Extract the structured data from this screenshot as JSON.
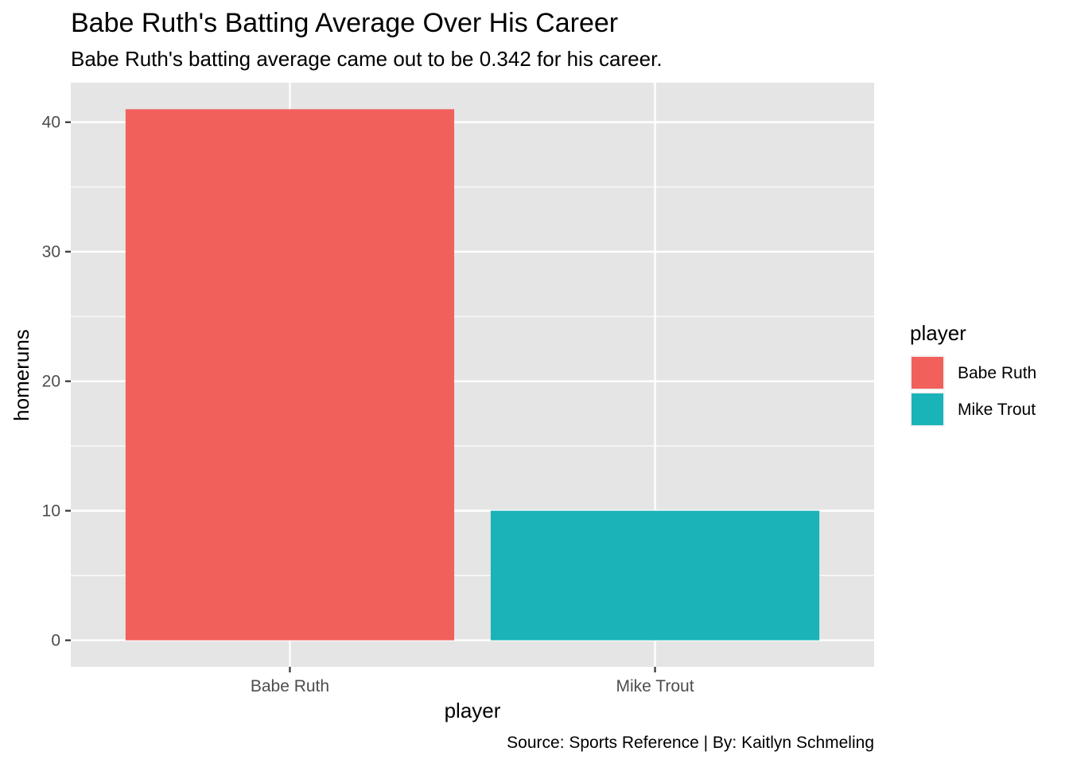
{
  "chart_data": {
    "type": "bar",
    "title": "Babe Ruth's Batting Average Over His Career",
    "subtitle": "Babe Ruth's batting average came out to be 0.342 for his career.",
    "caption": "Source: Sports Reference | By: Kaitlyn Schmeling",
    "xlabel": "player",
    "ylabel": "homeruns",
    "categories": [
      "Babe Ruth",
      "Mike Trout"
    ],
    "values": [
      41,
      10
    ],
    "colors": [
      "#F2605C",
      "#1AB3B8"
    ],
    "ylim": [
      -2.05,
      43.05
    ],
    "yticks": [
      0,
      10,
      20,
      30,
      40
    ],
    "ytick_labels": [
      "0",
      "10",
      "20",
      "30",
      "40"
    ],
    "grid": true,
    "panel_background": "#E5E5E5",
    "legend": {
      "title": "player",
      "position": "right",
      "entries": [
        "Babe Ruth",
        "Mike Trout"
      ]
    }
  }
}
